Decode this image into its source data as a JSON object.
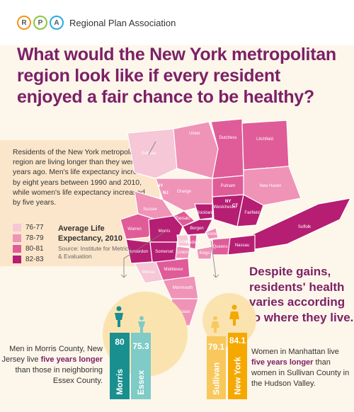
{
  "header": {
    "org_name": "Regional Plan Association",
    "logo_letters": [
      "R",
      "P",
      "A"
    ]
  },
  "title": "What would the New York metropolitan region look like if every resident enjoyed a fair chance to be healthy?",
  "intro": "Residents of the New York metropolitan region are living longer than they were 20 years ago. Men's life expectancy increased by eight years between 1990 and 2010, while women's life expectancy increased by five years.",
  "legend": {
    "items": [
      {
        "label": "76-77",
        "color": "#f6c7d6"
      },
      {
        "label": "78-79",
        "color": "#ef93b7"
      },
      {
        "label": "80-81",
        "color": "#e05c98"
      },
      {
        "label": "82-83",
        "color": "#b51e72"
      }
    ],
    "title": "Average Life Expectancy, 2010",
    "source": "Source: Institute for Metrics & Evaluation"
  },
  "map": {
    "counties": [
      "Sullivan",
      "Ulster",
      "Dutchess",
      "Litchfield",
      "Orange",
      "Putnam",
      "New Haven",
      "Sussex",
      "Passaic",
      "Rockland",
      "Westchester",
      "Fairfield",
      "Warren",
      "Morris",
      "Bergen",
      "Essex",
      "Hudson",
      "Bronx",
      "Suffolk",
      "Hunterdon",
      "Somerset",
      "Union",
      "Kings",
      "Queens",
      "Nassau",
      "Middlesex",
      "Monmouth",
      "Mercer",
      "Ocean"
    ],
    "state_labels": [
      "NY",
      "NJ",
      "NY",
      "CT"
    ]
  },
  "callout": "Despite gains, residents' health varies according to where they live.",
  "men": {
    "text_before": "Men in Morris County, New Jersey live ",
    "highlight": "five years longer",
    "text_after": " than those in neighboring Essex County.",
    "bars": [
      {
        "name": "Morris",
        "value": "80",
        "color": "#1a8f8f"
      },
      {
        "name": "Essex",
        "value": "75.3",
        "color": "#7ecbc7"
      }
    ]
  },
  "women": {
    "text_before": "Women in Manhattan live ",
    "highlight": "five years longer",
    "text_after": " than women in Sullivan County in the Hudson Valley.",
    "bars": [
      {
        "name": "Sullivan",
        "value": "79.1",
        "color": "#f8c85c"
      },
      {
        "name": "New York",
        "value": "84.1",
        "color": "#f5a800"
      }
    ]
  }
}
